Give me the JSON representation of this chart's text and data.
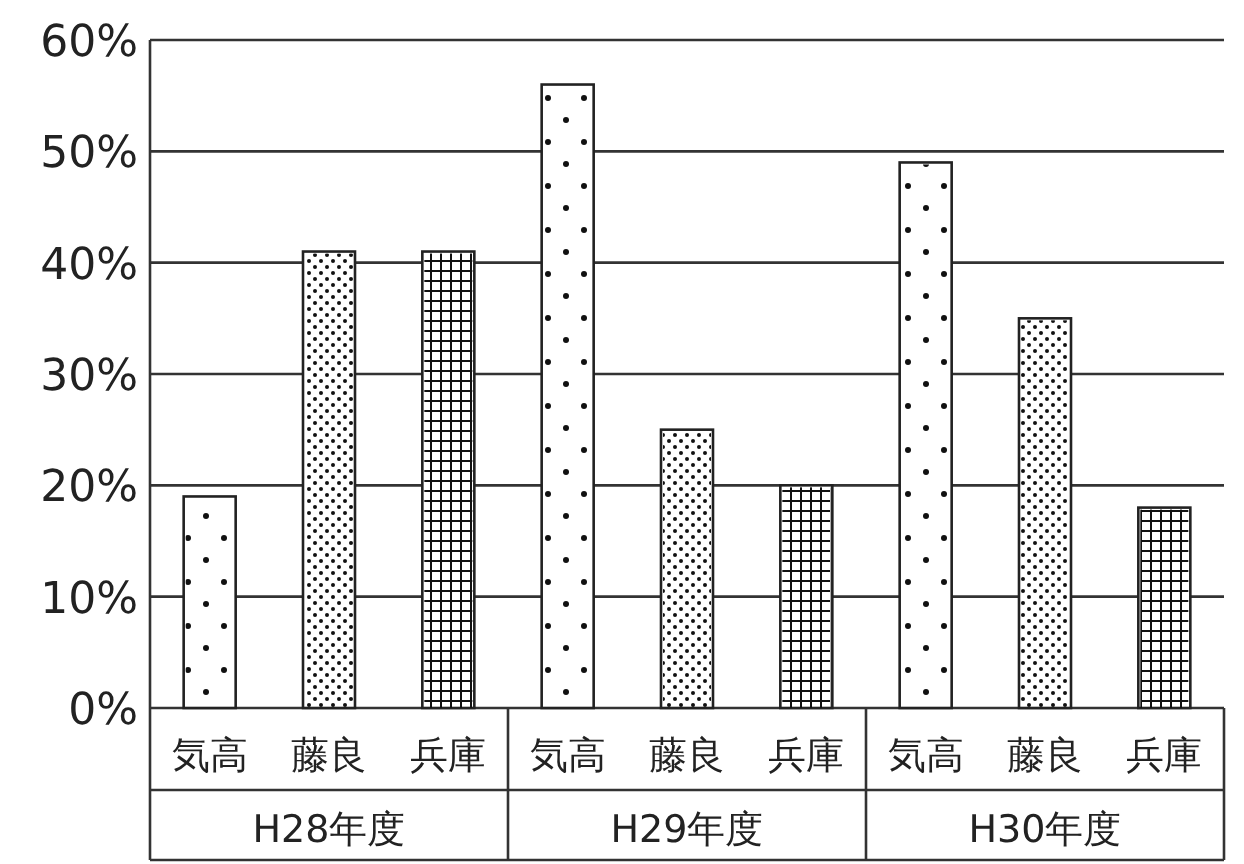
{
  "chart_data": {
    "type": "bar",
    "categories": [
      "H28年度",
      "H29年度",
      "H30年度"
    ],
    "series": [
      {
        "name": "気高",
        "color": "#ffffff",
        "values": [
          19,
          56,
          49
        ]
      },
      {
        "name": "藤良",
        "color": "#ffffff",
        "values": [
          41,
          25,
          35
        ]
      },
      {
        "name": "兵庫",
        "color": "#ffffff",
        "values": [
          41,
          20,
          18
        ]
      }
    ],
    "ylim": [
      0,
      60
    ],
    "yticks": [
      {
        "value": 0,
        "label": "0%"
      },
      {
        "value": 10,
        "label": "10%"
      },
      {
        "value": 20,
        "label": "20%"
      },
      {
        "value": 30,
        "label": "30%"
      },
      {
        "value": 40,
        "label": "40%"
      },
      {
        "value": 50,
        "label": "50%"
      },
      {
        "value": 60,
        "label": "60%"
      }
    ],
    "grid": "y"
  }
}
